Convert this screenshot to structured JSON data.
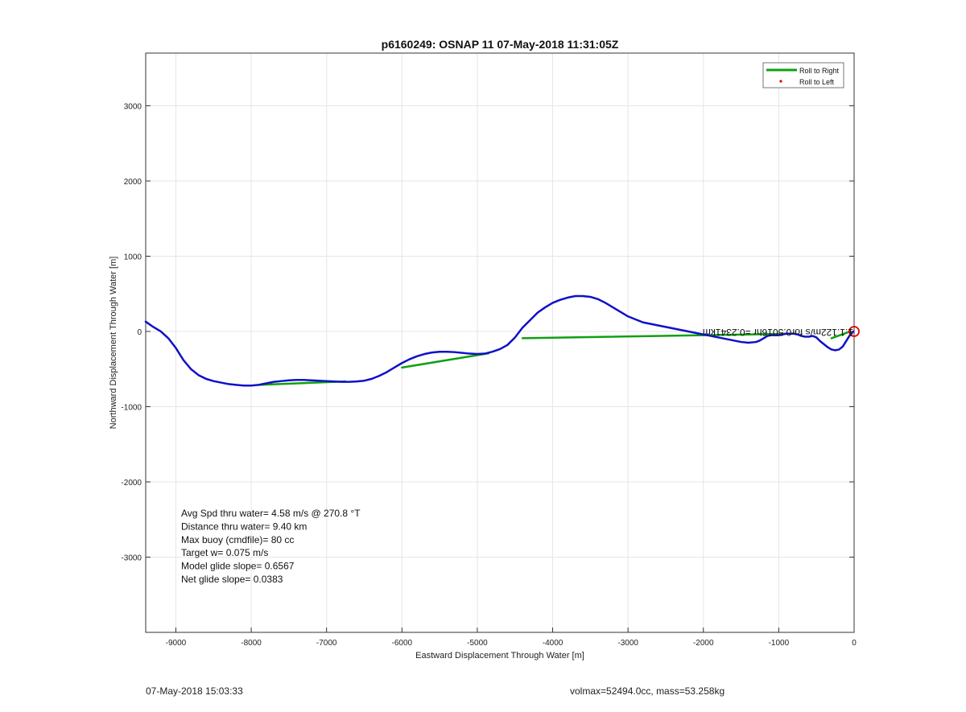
{
  "chart_data": {
    "type": "line",
    "title": "p6160249: OSNAP 11 07-May-2018 11:31:05Z",
    "xlabel": "Eastward Displacement Through Water [m]",
    "ylabel": "Northward Displacement Through Water [m]",
    "xlim": [
      -9400,
      0
    ],
    "ylim": [
      -4000,
      3700
    ],
    "xticks": [
      -9000,
      -8000,
      -7000,
      -6000,
      -5000,
      -4000,
      -3000,
      -2000,
      -1000,
      0
    ],
    "yticks": [
      3000,
      2000,
      1000,
      0,
      -1000,
      -2000,
      -3000
    ],
    "grid": true,
    "legend_position": "top-right",
    "legend": [
      {
        "label": "Roll to Right",
        "color": "#10a010",
        "marker": "line"
      },
      {
        "label": "Roll to Left",
        "color": "#e00000",
        "marker": "dot"
      }
    ],
    "track": {
      "name": "",
      "color": "#1010c8",
      "x": [
        -9400,
        -9300,
        -9200,
        -9100,
        -9000,
        -8900,
        -8800,
        -8700,
        -8600,
        -8500,
        -8400,
        -8300,
        -8200,
        -8100,
        -8000,
        -7900,
        -7800,
        -7700,
        -7600,
        -7500,
        -7400,
        -7300,
        -7200,
        -7100,
        -7000,
        -6900,
        -6800,
        -6700,
        -6600,
        -6500,
        -6400,
        -6300,
        -6200,
        -6100,
        -6000,
        -5900,
        -5800,
        -5700,
        -5600,
        -5500,
        -5400,
        -5300,
        -5200,
        -5100,
        -5000,
        -4900,
        -4800,
        -4700,
        -4600,
        -4500,
        -4400,
        -4300,
        -4200,
        -4100,
        -4000,
        -3900,
        -3800,
        -3700,
        -3600,
        -3500,
        -3400,
        -3300,
        -3200,
        -3100,
        -3000,
        -2900,
        -2800,
        -2700,
        -2600,
        -2500,
        -2400,
        -2300,
        -2200,
        -2100,
        -2000,
        -1900,
        -1800,
        -1700,
        -1600,
        -1500,
        -1400,
        -1300,
        -1250,
        -1200,
        -1150,
        -1100,
        -1050,
        -1000,
        -950,
        -900,
        -850,
        -800,
        -750,
        -700,
        -650,
        -600,
        -550,
        -500,
        -450,
        -400,
        -350,
        -300,
        -250,
        -200,
        -150,
        -100,
        -50,
        -10
      ],
      "y": [
        130,
        60,
        0,
        -90,
        -220,
        -380,
        -500,
        -580,
        -630,
        -660,
        -680,
        -700,
        -710,
        -720,
        -720,
        -710,
        -690,
        -670,
        -660,
        -650,
        -645,
        -645,
        -650,
        -655,
        -660,
        -665,
        -670,
        -670,
        -665,
        -655,
        -630,
        -590,
        -540,
        -480,
        -420,
        -370,
        -330,
        -300,
        -280,
        -270,
        -270,
        -275,
        -285,
        -295,
        -300,
        -295,
        -270,
        -235,
        -180,
        -80,
        50,
        150,
        250,
        320,
        380,
        420,
        450,
        470,
        470,
        460,
        430,
        380,
        320,
        260,
        200,
        160,
        120,
        100,
        80,
        60,
        40,
        20,
        0,
        -20,
        -40,
        -60,
        -80,
        -100,
        -120,
        -140,
        -150,
        -140,
        -120,
        -90,
        -60,
        -50,
        -50,
        -50,
        -40,
        -30,
        -30,
        -30,
        -40,
        -60,
        -70,
        -70,
        -60,
        -80,
        -130,
        -170,
        -210,
        -240,
        -250,
        -240,
        -200,
        -120,
        -40,
        0
      ]
    },
    "roll_right_segments": [
      {
        "x": [
          -7900,
          -6750
        ],
        "y": [
          -710,
          -665
        ]
      },
      {
        "x": [
          -6000,
          -4850
        ],
        "y": [
          -480,
          -290
        ]
      },
      {
        "x": [
          -4400,
          -1400
        ],
        "y": [
          -90,
          -40
        ]
      },
      {
        "x": [
          -1400,
          -850
        ],
        "y": [
          -40,
          -30
        ]
      },
      {
        "x": [
          -300,
          -50
        ],
        "y": [
          -90,
          0
        ]
      }
    ],
    "end_marker": {
      "x": 0,
      "y": 0,
      "color": "#e00000"
    },
    "mirrored_label": "1.1.122m/s for0.5016hr =0.2341km",
    "stats": [
      "Avg Spd thru water=  4.58 m/s @ 270.8 °T",
      "Distance thru water=  9.40 km",
      "Max buoy (cmdfile)= 80 cc",
      "Target w= 0.075 m/s",
      "Model glide slope= 0.6567",
      "Net glide slope= 0.0383"
    ]
  },
  "footer": {
    "timestamp": "07-May-2018 15:03:33",
    "vehicle_info": "volmax=52494.0cc, mass=53.258kg"
  }
}
